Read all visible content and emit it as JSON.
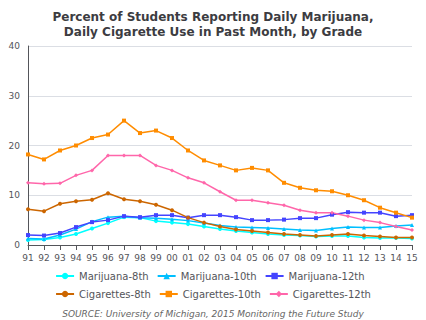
{
  "chart_data": {
    "type": "line",
    "title": "Percent of Students Reporting Daily Marijuana,\nDaily Cigarette Use in Past Month, by Grade",
    "annotations": [
      "SOURCE: University of Michigan, 2015 Monitoring the Future Study"
    ],
    "categories": [
      "91",
      "92",
      "93",
      "94",
      "95",
      "96",
      "97",
      "98",
      "99",
      "00",
      "01",
      "02",
      "03",
      "04",
      "05",
      "06",
      "07",
      "08",
      "09",
      "10",
      "11",
      "12",
      "13",
      "14",
      "15"
    ],
    "series": [
      {
        "name": "Marijuana-8th",
        "color": "#00FFFF",
        "marker": "circle",
        "values": [
          1.0,
          1.1,
          1.5,
          2.2,
          3.3,
          4.4,
          5.6,
          5.5,
          4.8,
          4.5,
          4.2,
          3.7,
          3.2,
          2.8,
          2.5,
          2.2,
          2.0,
          1.9,
          1.7,
          1.8,
          1.8,
          1.5,
          1.4,
          1.4,
          1.3
        ]
      },
      {
        "name": "Marijuana-10th",
        "color": "#00BFFF",
        "marker": "triangle",
        "values": [
          1.3,
          1.2,
          2.0,
          3.2,
          4.7,
          5.6,
          5.8,
          5.5,
          5.4,
          5.2,
          4.9,
          4.4,
          3.9,
          3.6,
          3.5,
          3.4,
          3.2,
          3.0,
          2.9,
          3.3,
          3.6,
          3.5,
          3.5,
          3.8,
          4.0
        ]
      },
      {
        "name": "Marijuana-12th",
        "color": "#4444FF",
        "marker": "square",
        "values": [
          2.0,
          1.9,
          2.4,
          3.6,
          4.6,
          5.0,
          5.8,
          5.6,
          6.0,
          6.0,
          5.5,
          6.0,
          6.0,
          5.6,
          5.0,
          5.0,
          5.1,
          5.4,
          5.4,
          6.1,
          6.6,
          6.5,
          6.5,
          5.8,
          6.0
        ]
      },
      {
        "name": "Cigarettes-8th",
        "color": "#CC6600",
        "marker": "circle",
        "values": [
          7.2,
          6.8,
          8.3,
          8.8,
          9.1,
          10.4,
          9.2,
          8.8,
          8.1,
          7.0,
          5.5,
          4.5,
          3.7,
          3.1,
          2.8,
          2.5,
          2.2,
          2.0,
          1.8,
          2.0,
          2.2,
          1.9,
          1.7,
          1.5,
          1.5
        ]
      },
      {
        "name": "Cigarettes-10th",
        "color": "#FF8C00",
        "marker": "square",
        "values": [
          18.2,
          17.2,
          19.0,
          20.0,
          21.5,
          22.2,
          25.0,
          22.5,
          23.0,
          21.5,
          19.0,
          17.0,
          16.0,
          15.0,
          15.5,
          15.0,
          12.5,
          11.5,
          11.0,
          10.8,
          10.0,
          9.0,
          7.5,
          6.5,
          5.5
        ]
      },
      {
        "name": "Cigarettes-12th",
        "color": "#FF66AA",
        "marker": "diamond",
        "values": [
          12.5,
          12.3,
          12.4,
          14.0,
          15.0,
          18.0,
          18.0,
          18.0,
          16.0,
          15.0,
          13.5,
          12.5,
          10.7,
          9.0,
          9.0,
          8.5,
          8.0,
          7.0,
          6.5,
          6.5,
          5.8,
          5.0,
          4.5,
          3.7,
          3.0
        ]
      }
    ],
    "ylim": [
      0,
      40
    ],
    "yticks": [
      0,
      10,
      20,
      30,
      40
    ],
    "grid": true,
    "legend": "bottom"
  }
}
